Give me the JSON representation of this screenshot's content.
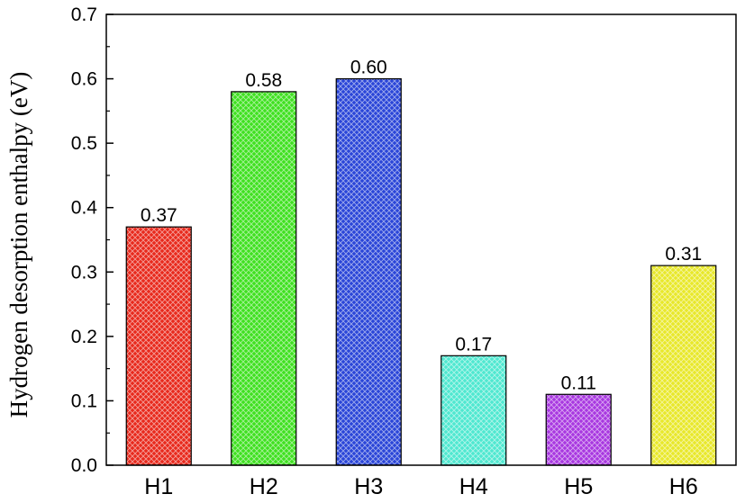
{
  "chart_data": {
    "type": "bar",
    "categories": [
      "H1",
      "H2",
      "H3",
      "H4",
      "H5",
      "H6"
    ],
    "values": [
      0.37,
      0.58,
      0.6,
      0.17,
      0.11,
      0.31
    ],
    "value_labels": [
      "0.37",
      "0.58",
      "0.60",
      "0.17",
      "0.11",
      "0.31"
    ],
    "colors": [
      "#e8291c",
      "#3fe020",
      "#2a45d8",
      "#4fe8d0",
      "#a838e0",
      "#e8e82a"
    ],
    "xlabel": "",
    "ylabel": "Hydrogen desorption enthalpy (eV)",
    "ylim": [
      0,
      0.7
    ],
    "yticks": [
      0.0,
      0.1,
      0.2,
      0.3,
      0.4,
      0.5,
      0.6,
      0.7
    ],
    "ytick_labels": [
      "0.0",
      "0.1",
      "0.2",
      "0.3",
      "0.4",
      "0.5",
      "0.6",
      "0.7"
    ],
    "grid": false,
    "bar_pattern": "crosshatch"
  }
}
